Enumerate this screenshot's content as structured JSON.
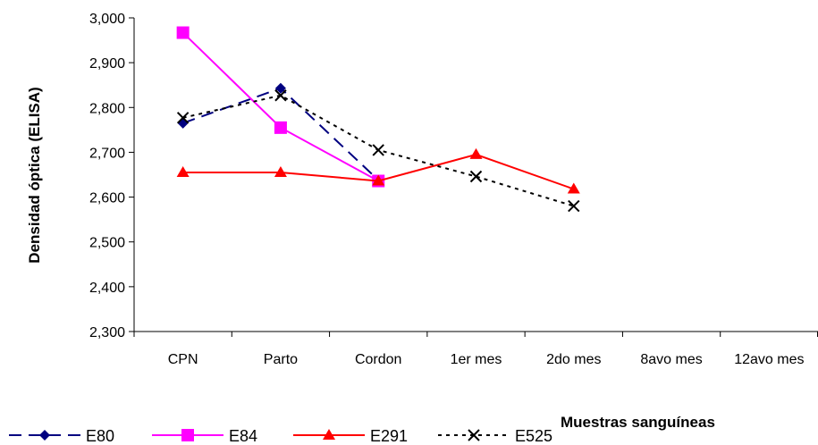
{
  "chart_data": {
    "type": "line",
    "title": "",
    "xlabel": "Muestras sanguíneas",
    "ylabel": "Densidad óptica (ELISA)",
    "categories": [
      "CPN",
      "Parto",
      "Cordon",
      "1er mes",
      "2do mes",
      "8avo mes",
      "12avo mes"
    ],
    "ylim": [
      2.3,
      3.0
    ],
    "yticks": [
      2.3,
      2.4,
      2.5,
      2.6,
      2.7,
      2.8,
      2.9,
      3.0
    ],
    "ytick_labels": [
      "2,300",
      "2,400",
      "2,500",
      "2,600",
      "2,700",
      "2,800",
      "2,900",
      "3,000"
    ],
    "grid": false,
    "legend_position": "bottom",
    "series": [
      {
        "name": "E80",
        "values": [
          2.765,
          2.843,
          2.638,
          null,
          null,
          null,
          null
        ],
        "color": "#000080",
        "marker": "diamond",
        "line": "dash"
      },
      {
        "name": "E84",
        "values": [
          2.967,
          2.755,
          2.636,
          null,
          null,
          null,
          null
        ],
        "color": "#ff00ff",
        "marker": "square",
        "line": "solid"
      },
      {
        "name": "E291",
        "values": [
          2.655,
          2.655,
          2.636,
          2.695,
          2.618,
          null,
          null
        ],
        "color": "#ff0000",
        "marker": "triangle",
        "line": "solid"
      },
      {
        "name": "E525",
        "values": [
          2.777,
          2.827,
          2.705,
          2.646,
          2.58,
          null,
          null
        ],
        "color": "#000000",
        "marker": "x",
        "line": "dot"
      }
    ]
  }
}
